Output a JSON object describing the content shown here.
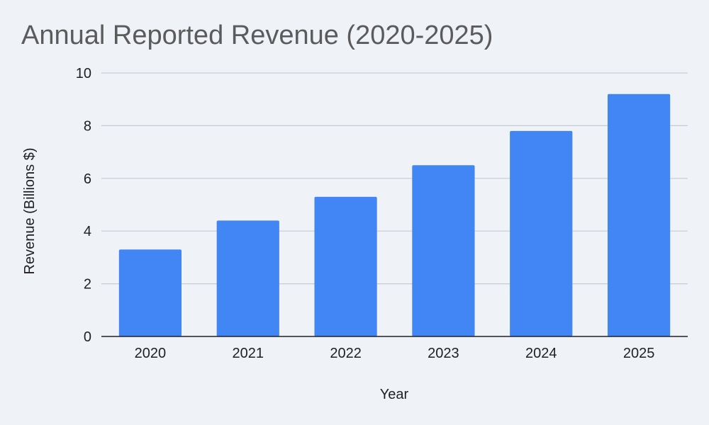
{
  "chart_data": {
    "type": "bar",
    "title": "Annual Reported Revenue (2020-2025)",
    "xlabel": "Year",
    "ylabel": "Revenue (Billions $)",
    "categories": [
      "2020",
      "2021",
      "2022",
      "2023",
      "2024",
      "2025"
    ],
    "series": [
      {
        "name": "Revenue (Billions $)",
        "values": [
          3.3,
          4.4,
          5.3,
          6.5,
          7.8,
          9.2
        ]
      }
    ],
    "ylim": [
      0,
      10
    ],
    "yticks": [
      "0",
      "2",
      "4",
      "6",
      "8",
      "10"
    ],
    "grid": true,
    "legend": "none",
    "colors": {
      "bar": "#4285f4",
      "grid": "#c7ccd3",
      "axis": "#202124",
      "background": "#eff3f8"
    }
  }
}
